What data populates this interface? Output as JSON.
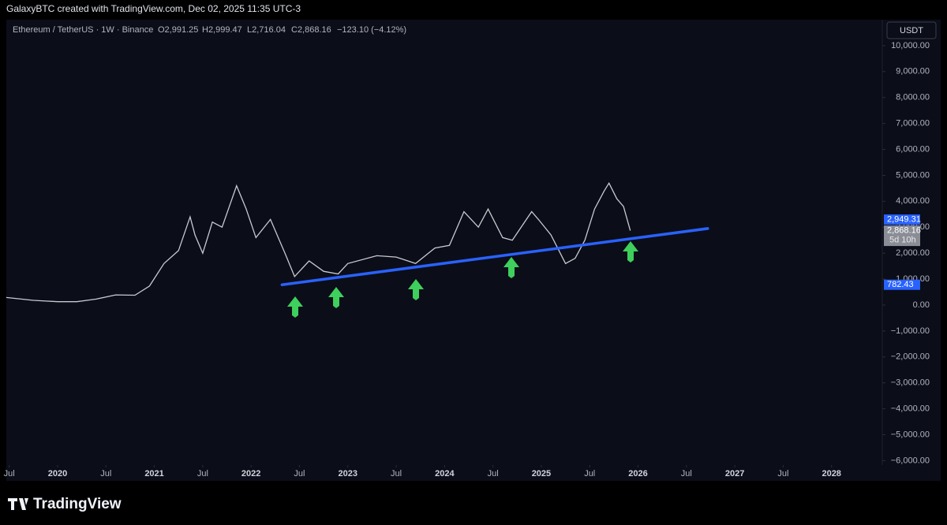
{
  "header": {
    "credit": "GalaxyBTC created with TradingView.com, Dec 02, 2025 11:35 UTC-3"
  },
  "chart_data": {
    "type": "line",
    "legend": {
      "symbol": "Ethereum / TetherUS · 1W · Binance",
      "open": "O2,991.25",
      "high": "H2,999.47",
      "low": "L2,716.04",
      "close": "C2,868.16",
      "change": "−123.10 (−4.12%)"
    },
    "currency": "USDT",
    "x": [
      2019.47,
      2019.75,
      2020.0,
      2020.2,
      2020.4,
      2020.6,
      2020.8,
      2020.95,
      2021.1,
      2021.25,
      2021.37,
      2021.42,
      2021.5,
      2021.6,
      2021.7,
      2021.85,
      2021.95,
      2022.05,
      2022.2,
      2022.35,
      2022.45,
      2022.6,
      2022.75,
      2022.9,
      2023.0,
      2023.3,
      2023.5,
      2023.7,
      2023.9,
      2024.05,
      2024.2,
      2024.35,
      2024.45,
      2024.6,
      2024.7,
      2024.9,
      2024.97,
      2025.1,
      2025.25,
      2025.35,
      2025.45,
      2025.55,
      2025.65,
      2025.7,
      2025.78,
      2025.85,
      2025.92
    ],
    "series": [
      {
        "name": "ETHUSDT",
        "color": "#c8cad0",
        "values": [
          290,
          180,
          130,
          130,
          230,
          390,
          380,
          730,
          1600,
          2100,
          3400,
          2700,
          2000,
          3200,
          3000,
          4600,
          3700,
          2600,
          3300,
          2000,
          1100,
          1700,
          1300,
          1200,
          1600,
          1900,
          1850,
          1600,
          2200,
          2300,
          3600,
          3000,
          3700,
          2600,
          2500,
          3600,
          3300,
          2700,
          1600,
          1800,
          2500,
          3700,
          4400,
          4700,
          4100,
          3800,
          2868.16
        ],
        "last_label": "2,868.16",
        "countdown": "5d 10h"
      }
    ],
    "trendline": {
      "color": "#2962ff",
      "x": [
        2022.32,
        2026.72
      ],
      "values": [
        782.43,
        2949.31
      ],
      "value_labels": [
        "782.43",
        "2,949.31"
      ]
    },
    "xlim": [
      2019.47,
      2028.5
    ],
    "xticks": [
      {
        "value": 2019.5,
        "label": "Jul"
      },
      2020,
      {
        "value": 2020.5,
        "label": "Jul"
      },
      2021,
      {
        "value": 2021.5,
        "label": "Jul"
      },
      2022,
      {
        "value": 2022.5,
        "label": "Jul"
      },
      2023,
      {
        "value": 2023.5,
        "label": "Jul"
      },
      2024,
      {
        "value": 2024.5,
        "label": "Jul"
      },
      2025,
      {
        "value": 2025.5,
        "label": "Jul"
      },
      2026,
      {
        "value": 2026.5,
        "label": "Jul"
      },
      2027,
      {
        "value": 2027.5,
        "label": "Jul"
      },
      2028
    ],
    "ylim": [
      -6170,
      11000
    ],
    "yticks": [
      {
        "value": 10000,
        "label": "10,000.00"
      },
      {
        "value": 9000,
        "label": "9,000.00"
      },
      {
        "value": 8000,
        "label": "8,000.00"
      },
      {
        "value": 7000,
        "label": "7,000.00"
      },
      {
        "value": 6000,
        "label": "6,000.00"
      },
      {
        "value": 5000,
        "label": "5,000.00"
      },
      {
        "value": 4000,
        "label": "4,000.00"
      },
      {
        "value": 3000,
        "label": "3,000.00"
      },
      {
        "value": 2000,
        "label": "2,000.00"
      },
      {
        "value": 1000,
        "label": "1,000.00"
      },
      {
        "value": 0,
        "label": "0.00"
      },
      {
        "value": -1000,
        "label": "−1,000.00"
      },
      {
        "value": -2000,
        "label": "−2,000.00"
      },
      {
        "value": -3000,
        "label": "−3,000.00"
      },
      {
        "value": -4000,
        "label": "−4,000.00"
      },
      {
        "value": -5000,
        "label": "−5,000.00"
      },
      {
        "value": -6000,
        "label": "−6,000.00"
      }
    ],
    "grid": false
  },
  "footer": {
    "brand": "TradingView"
  }
}
